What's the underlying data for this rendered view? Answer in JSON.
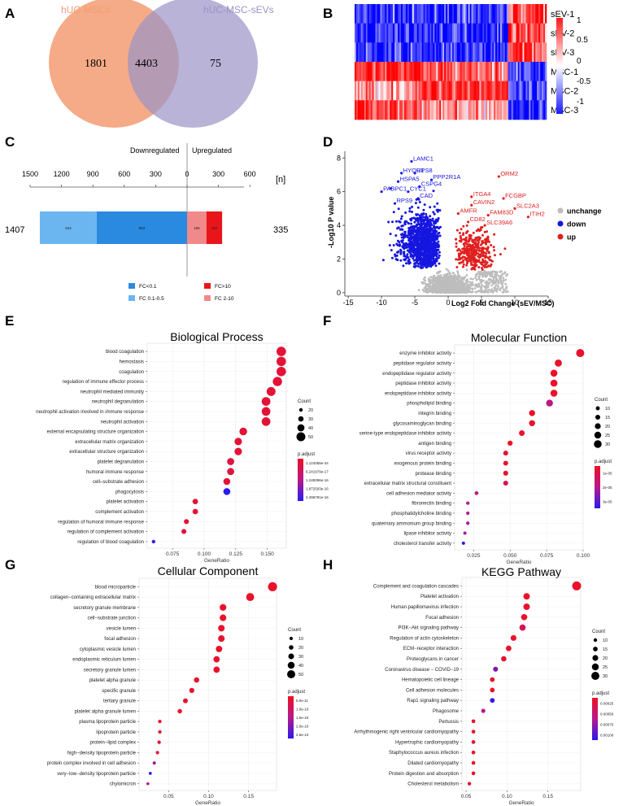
{
  "panels": {
    "a": "A",
    "b": "B",
    "c": "C",
    "d": "D",
    "e": "E",
    "f": "F",
    "g": "G",
    "h": "H"
  },
  "venn": {
    "left_label": "hUC-MSCs",
    "right_label": "hUC-MSC-sEVs",
    "left_only": "1801",
    "overlap": "4403",
    "right_only": "75",
    "left_color": "#f39c72",
    "right_color": "#9a93c6"
  },
  "heatmap": {
    "rows": [
      "sEV-1",
      "sEV-2",
      "sEV-3",
      "MSC-1",
      "MSC-2",
      "MSC-3"
    ],
    "scale_ticks": [
      "1",
      "0.5",
      "0",
      "-0.5",
      "-1"
    ]
  },
  "diverging": {
    "downregulated_label": "Downregulated",
    "upregulated_label": "Upregulated",
    "axis_ticks": [
      "1500",
      "1200",
      "900",
      "600",
      "300",
      "0",
      "300",
      "600"
    ],
    "unit": "[n]",
    "total_down": "1407",
    "total_up": "335",
    "segments": [
      {
        "label": "863",
        "value": 863,
        "color": "#2a8ae0",
        "side": "down"
      },
      {
        "label": "544",
        "value": 544,
        "color": "#6bb6f0",
        "side": "down"
      },
      {
        "label": "185",
        "value": 185,
        "color": "#f08a8a",
        "side": "up"
      },
      {
        "label": "150",
        "value": 150,
        "color": "#e8161b",
        "side": "up"
      }
    ],
    "legend": [
      {
        "label": "FC<0.1",
        "color": "#2a8ae0"
      },
      {
        "label": "FC 0.1-0.5",
        "color": "#6bb6f0"
      },
      {
        "label": "FC>10",
        "color": "#e8161b"
      },
      {
        "label": "FC 2-10",
        "color": "#f08a8a"
      }
    ]
  },
  "volcano": {
    "xlabel": "Log2 Fold Change (sEV/MSC)",
    "ylabel": "-Log10 P value",
    "xticks": [
      "-15",
      "-10",
      "-5",
      "0",
      "5",
      "10",
      "15"
    ],
    "yticks": [
      "0",
      "2",
      "4",
      "6",
      "8"
    ],
    "legend": [
      {
        "label": "unchange",
        "color": "#bdbdbd"
      },
      {
        "label": "down",
        "color": "#1616e0"
      },
      {
        "label": "up",
        "color": "#e02020"
      }
    ],
    "down_genes": [
      {
        "name": "LAMC1",
        "x": -5.5,
        "y": 7.8
      },
      {
        "name": "HYOU1",
        "x": -7,
        "y": 7.1
      },
      {
        "name": "RPS8",
        "x": -5,
        "y": 7.1
      },
      {
        "name": "HSPA5",
        "x": -7.5,
        "y": 6.6
      },
      {
        "name": "PPP2R1A",
        "x": -2.5,
        "y": 6.7
      },
      {
        "name": "CSPG4",
        "x": -4.3,
        "y": 6.3
      },
      {
        "name": "PABPC1",
        "x": -10,
        "y": 6.0
      },
      {
        "name": "CYC1",
        "x": -6,
        "y": 6.0
      },
      {
        "name": "CAD",
        "x": -4.5,
        "y": 5.6
      },
      {
        "name": "RPS9",
        "x": -8,
        "y": 5.3
      }
    ],
    "up_genes": [
      {
        "name": "ORM2",
        "x": 7.6,
        "y": 6.9
      },
      {
        "name": "FCGBP",
        "x": 8.3,
        "y": 5.6
      },
      {
        "name": "ITGA4",
        "x": 3.5,
        "y": 5.7
      },
      {
        "name": "CAVIN2",
        "x": 3.5,
        "y": 5.2
      },
      {
        "name": "SLC2A3",
        "x": 10,
        "y": 5.0
      },
      {
        "name": "AMFR",
        "x": 1.5,
        "y": 4.7
      },
      {
        "name": "FAM83D",
        "x": 6,
        "y": 4.6
      },
      {
        "name": "ITIH2",
        "x": 12,
        "y": 4.5
      },
      {
        "name": "CD82",
        "x": 3,
        "y": 4.2
      },
      {
        "name": "SLC39A6",
        "x": 5.5,
        "y": 4.0
      }
    ]
  },
  "chart_data": [
    {
      "type": "scatter",
      "title": "Biological Process",
      "xlabel": "GeneRatio",
      "xlim": [
        0.055,
        0.165
      ],
      "xticks": [
        "0.075",
        "0.100",
        "0.125",
        "0.150"
      ],
      "size_title": "Count",
      "size_ticks": [
        "20",
        "30",
        "40",
        "50"
      ],
      "color_title": "p.adjust",
      "color_ticks": [
        "1.124058e-34",
        "6.241979e-17",
        "1.248396e-16",
        "1.872593e-16",
        "2.496791e-16"
      ],
      "terms": [
        "blood coagulation",
        "hemostasis",
        "coagulation",
        "regulation of immune effector process",
        "neutrophil mediated immunity",
        "neutrophil degranulation",
        "neutrophil activation involved in immune response",
        "neutrophil activation",
        "external encapsulating structure organization",
        "extracellular matrix organization",
        "extracellular structure organization",
        "platelet degranulation",
        "humoral immune response",
        "cell–substrate adhesion",
        "phagocytosis",
        "platelet activation",
        "complement activation",
        "regulation of humoral immune response",
        "regulation of complement activation",
        "regulation of blood coagulation"
      ],
      "x": [
        0.161,
        0.161,
        0.161,
        0.158,
        0.153,
        0.149,
        0.149,
        0.149,
        0.131,
        0.127,
        0.127,
        0.121,
        0.121,
        0.118,
        0.118,
        0.093,
        0.093,
        0.086,
        0.084,
        0.06
      ],
      "count": [
        53,
        53,
        53,
        52,
        50,
        49,
        49,
        49,
        43,
        42,
        42,
        40,
        40,
        39,
        39,
        31,
        31,
        28,
        28,
        20
      ],
      "p": [
        0.1,
        0.1,
        0.1,
        0.1,
        0.1,
        0.1,
        0.1,
        0.1,
        0.1,
        0.1,
        0.1,
        0.15,
        0.15,
        0.1,
        1.0,
        0.1,
        0.1,
        0.1,
        0.1,
        0.95
      ]
    },
    {
      "type": "scatter",
      "title": "Molecular Function",
      "xlabel": "GeneRatio",
      "xlim": [
        0.012,
        0.1
      ],
      "xticks": [
        "0.025",
        "0.050",
        "0.075",
        "0.100"
      ],
      "size_title": "Count",
      "size_ticks": [
        "10",
        "15",
        "20",
        "25",
        "30"
      ],
      "color_title": "p.adjust",
      "color_ticks": [
        "1e-05",
        "2e-05",
        "3e-05"
      ],
      "terms": [
        "enzyme inhibitor activity",
        "peptidase regulator activity",
        "endopeptidase regulator activity",
        "peptidase inhibitor activity",
        "endopeptidase inhibitor activity",
        "phospholipid binding",
        "integrin binding",
        "glycosaminoglycan binding",
        "serine-type endopeptidase inhibitor activity",
        "antigen binding",
        "virus receptor activity",
        "exogenous protein binding",
        "protease binding",
        "extracellular matrix structural constituent",
        "cell adhesion mediator activity",
        "fibronectin binding",
        "phosphatidylcholine binding",
        "quaternary ammonium group binding",
        "lipase inhibitor activity",
        "cholesterol transfer activity"
      ],
      "x": [
        0.098,
        0.083,
        0.08,
        0.08,
        0.08,
        0.077,
        0.065,
        0.065,
        0.058,
        0.05,
        0.047,
        0.047,
        0.047,
        0.047,
        0.027,
        0.021,
        0.021,
        0.021,
        0.019,
        0.018
      ],
      "count": [
        32,
        27,
        26,
        26,
        26,
        25,
        21,
        21,
        19,
        16,
        15,
        15,
        15,
        15,
        9,
        7,
        7,
        7,
        6,
        6
      ],
      "p": [
        0.05,
        0.05,
        0.05,
        0.05,
        0.05,
        0.45,
        0.05,
        0.05,
        0.05,
        0.05,
        0.05,
        0.05,
        0.05,
        0.2,
        0.45,
        0.5,
        0.5,
        0.55,
        0.55,
        0.98
      ]
    },
    {
      "type": "scatter",
      "title": "Cellular Component",
      "xlabel": "GeneRatio",
      "xlim": [
        0.013,
        0.185
      ],
      "xticks": [
        "0.05",
        "0.10",
        "0.15"
      ],
      "size_title": "Count",
      "size_ticks": [
        "10",
        "20",
        "30",
        "40",
        "50"
      ],
      "color_title": "p.adjust",
      "color_ticks": [
        "5.0e-11",
        "1.0e-10",
        "1.5e-10",
        "2.0e-10",
        "2.5e-10"
      ],
      "terms": [
        "blood microparticle",
        "collagen−containing extracellular matrix",
        "secretory granule membrane",
        "cell−substrate junction",
        "vesicle lumen",
        "focal adhesion",
        "cytoplasmic vesicle lumen",
        "endoplasmic reticulum lumen",
        "secretory granule lumen",
        "platelet alpha granule",
        "specific granule",
        "tertiary granule",
        "platelet alpha granule lumen",
        "plasma lipoprotein particle",
        "lipoprotein particle",
        "protein−lipid complex",
        "high−density lipoprotein particle",
        "protein complex involved in cell adhesion",
        "very−low−density lipoprotein particle",
        "chylomicron"
      ],
      "x": [
        0.18,
        0.152,
        0.118,
        0.118,
        0.116,
        0.116,
        0.113,
        0.11,
        0.11,
        0.085,
        0.079,
        0.071,
        0.064,
        0.039,
        0.039,
        0.038,
        0.036,
        0.032,
        0.027,
        0.024
      ],
      "count": [
        58,
        49,
        38,
        38,
        37,
        37,
        36,
        35,
        35,
        27,
        25,
        23,
        20,
        12,
        12,
        12,
        11,
        10,
        8,
        7
      ],
      "p": [
        0.05,
        0.05,
        0.05,
        0.05,
        0.05,
        0.05,
        0.05,
        0.05,
        0.05,
        0.05,
        0.05,
        0.05,
        0.05,
        0.05,
        0.05,
        0.05,
        0.1,
        0.6,
        0.97,
        0.5
      ]
    },
    {
      "type": "scatter",
      "title": "KEGG Pathway",
      "xlabel": "GeneRatio",
      "xlim": [
        0.045,
        0.19
      ],
      "xticks": [
        "0.05",
        "0.10",
        "0.15"
      ],
      "size_title": "Count",
      "size_ticks": [
        "10",
        "15",
        "20",
        "25",
        "30"
      ],
      "color_title": "p.adjust",
      "color_ticks": [
        "0.00025",
        "0.00050",
        "0.00075",
        "0.00100"
      ],
      "terms": [
        "Complement and coagulation cascades",
        "Platelet activation",
        "Human papillomavirus infection",
        "Focal adhesion",
        "PI3K−Akt signaling pathway",
        "Regulation of actin cytoskeleton",
        "ECM−receptor interaction",
        "Proteoglycans in cancer",
        "Coronavirus disease − COVID−19",
        "Hematopoietic cell lineage",
        "Cell adhesion molecules",
        "Rap1 signaling pathway",
        "Phagosome",
        "Pertussis",
        "Arrhythmogenic right ventricular cardiomyopathy",
        "Hypertrophic cardiomyopathy",
        "Staphylococcus aureus infection",
        "Dilated cardiomyopathy",
        "Protein digestion and absorption",
        "Cholesterol metabolism"
      ],
      "x": [
        0.185,
        0.124,
        0.124,
        0.121,
        0.119,
        0.108,
        0.102,
        0.096,
        0.086,
        0.082,
        0.082,
        0.082,
        0.071,
        0.059,
        0.059,
        0.059,
        0.059,
        0.059,
        0.059,
        0.054
      ],
      "count": [
        34,
        23,
        23,
        22,
        22,
        20,
        19,
        18,
        16,
        15,
        15,
        15,
        13,
        11,
        11,
        11,
        11,
        11,
        11,
        10
      ],
      "p": [
        0.05,
        0.05,
        0.05,
        0.05,
        0.25,
        0.05,
        0.05,
        0.05,
        0.7,
        0.05,
        0.05,
        0.97,
        0.5,
        0.05,
        0.05,
        0.05,
        0.05,
        0.05,
        0.05,
        0.05
      ]
    }
  ]
}
